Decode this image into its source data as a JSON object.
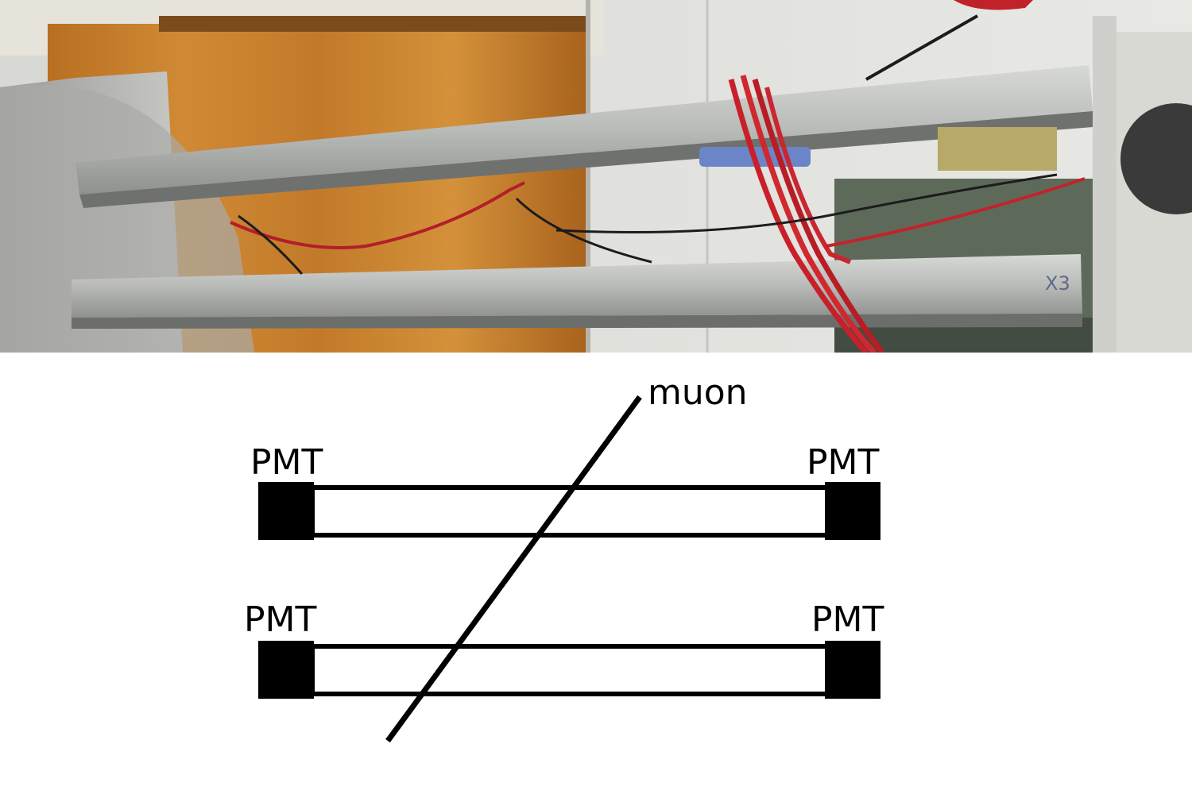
{
  "photo": {
    "marking_text": "X3"
  },
  "diagram": {
    "particle_label": "muon",
    "pmt_label": "PMT",
    "detectors": [
      {
        "name": "upper-scintillator",
        "left_pmt": "PMT",
        "right_pmt": "PMT"
      },
      {
        "name": "lower-scintillator",
        "left_pmt": "PMT",
        "right_pmt": "PMT"
      }
    ]
  }
}
